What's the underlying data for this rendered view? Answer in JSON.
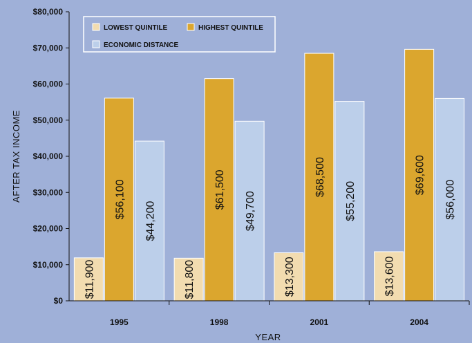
{
  "chart_data": {
    "type": "bar",
    "categories": [
      "1995",
      "1998",
      "2001",
      "2004"
    ],
    "series": [
      {
        "name": "LOWEST QUINTILE",
        "color": "#f2dcb0",
        "values": [
          11900,
          11800,
          13300,
          13600
        ],
        "labels": [
          "$11,900",
          "$11,800",
          "$13,300",
          "$13,600"
        ]
      },
      {
        "name": "HIGHEST QUINTILE",
        "color": "#dba62e",
        "values": [
          56100,
          61500,
          68500,
          69600
        ],
        "labels": [
          "$56,100",
          "$61,500",
          "$68,500",
          "$69,600"
        ]
      },
      {
        "name": "ECONOMIC DISTANCE",
        "color": "#bccfea",
        "values": [
          44200,
          49700,
          55200,
          56000
        ],
        "labels": [
          "$44,200",
          "$49,700",
          "$55,200",
          "$56,000"
        ]
      }
    ],
    "xlabel": "YEAR",
    "ylabel": "AFTER TAX INCOME",
    "ylim": [
      0,
      80000
    ],
    "yticks": [
      0,
      10000,
      20000,
      30000,
      40000,
      50000,
      60000,
      70000,
      80000
    ],
    "ytick_labels": [
      "$0",
      "$10,000",
      "$20,000",
      "$30,000",
      "$40,000",
      "$50,000",
      "$60,000",
      "$70,000",
      "$80,000"
    ],
    "grid": false,
    "legend": "top-left",
    "background": "#9fb0d8"
  }
}
